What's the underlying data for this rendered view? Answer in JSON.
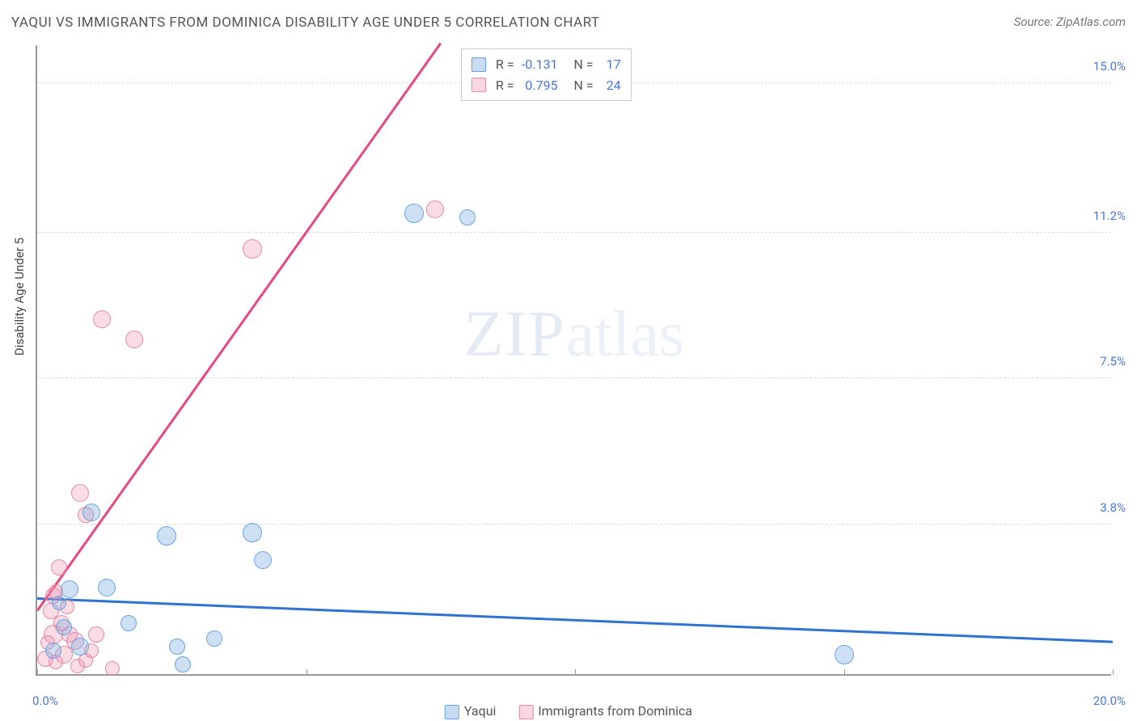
{
  "title": "YAQUI VS IMMIGRANTS FROM DOMINICA DISABILITY AGE UNDER 5 CORRELATION CHART",
  "source_label": "Source:",
  "source_name": "ZipAtlas.com",
  "y_axis_label": "Disability Age Under 5",
  "watermark_primary": "ZIP",
  "watermark_secondary": "atlas",
  "chart": {
    "type": "scatter",
    "background_color": "#ffffff",
    "grid_color": "#dddddd",
    "axis_color": "#999999",
    "xlim": [
      0,
      20
    ],
    "ylim": [
      0,
      16
    ],
    "x_ticks": [
      0,
      5,
      10,
      15,
      20
    ],
    "x_tick_labels": {
      "0": "0.0%",
      "20": "20.0%"
    },
    "y_ticks": [
      3.8,
      7.5,
      11.2,
      15.0
    ],
    "y_tick_labels": [
      "3.8%",
      "7.5%",
      "11.2%",
      "15.0%"
    ],
    "label_color": "#4a76d6",
    "label_fontsize": 15,
    "title_fontsize": 17,
    "series": [
      {
        "name": "Yaqui",
        "color_fill": "rgba(115,168,224,0.35)",
        "color_stroke": "#6aa3e0",
        "trend_color": "#2e72d2",
        "marker_radius": 11,
        "R": "-0.131",
        "N": "17",
        "trend": {
          "x1": 0,
          "y1": 1.9,
          "x2": 20,
          "y2": 0.8
        },
        "points": [
          {
            "x": 0.3,
            "y": 0.6,
            "r": 10
          },
          {
            "x": 0.5,
            "y": 1.2,
            "r": 10
          },
          {
            "x": 0.6,
            "y": 2.15,
            "r": 11
          },
          {
            "x": 0.8,
            "y": 0.7,
            "r": 11
          },
          {
            "x": 1.0,
            "y": 4.1,
            "r": 11
          },
          {
            "x": 1.3,
            "y": 2.2,
            "r": 11
          },
          {
            "x": 1.7,
            "y": 1.3,
            "r": 10
          },
          {
            "x": 2.4,
            "y": 3.5,
            "r": 12
          },
          {
            "x": 2.6,
            "y": 0.7,
            "r": 10
          },
          {
            "x": 2.7,
            "y": 0.25,
            "r": 10
          },
          {
            "x": 3.3,
            "y": 0.9,
            "r": 10
          },
          {
            "x": 4.0,
            "y": 3.6,
            "r": 12
          },
          {
            "x": 4.2,
            "y": 2.9,
            "r": 11
          },
          {
            "x": 7.0,
            "y": 11.7,
            "r": 12
          },
          {
            "x": 8.0,
            "y": 11.6,
            "r": 10
          },
          {
            "x": 15.0,
            "y": 0.5,
            "r": 12
          },
          {
            "x": 0.4,
            "y": 1.8,
            "r": 9
          }
        ]
      },
      {
        "name": "Immigrants from Dominica",
        "color_fill": "rgba(240,140,170,0.3)",
        "color_stroke": "#e688aa",
        "trend_color": "#e9487f",
        "marker_radius": 11,
        "R": "0.795",
        "N": "24",
        "trend": {
          "x1": 0,
          "y1": 1.6,
          "x2": 7.5,
          "y2": 16.0
        },
        "points": [
          {
            "x": 0.15,
            "y": 0.4,
            "r": 10
          },
          {
            "x": 0.2,
            "y": 0.8,
            "r": 9
          },
          {
            "x": 0.25,
            "y": 1.6,
            "r": 10
          },
          {
            "x": 0.3,
            "y": 2.0,
            "r": 10
          },
          {
            "x": 0.3,
            "y": 1.0,
            "r": 12
          },
          {
            "x": 0.35,
            "y": 2.1,
            "r": 9
          },
          {
            "x": 0.35,
            "y": 0.3,
            "r": 9
          },
          {
            "x": 0.4,
            "y": 2.7,
            "r": 10
          },
          {
            "x": 0.45,
            "y": 1.3,
            "r": 10
          },
          {
            "x": 0.5,
            "y": 0.5,
            "r": 11
          },
          {
            "x": 0.6,
            "y": 1.0,
            "r": 10
          },
          {
            "x": 0.7,
            "y": 0.85,
            "r": 11
          },
          {
            "x": 0.75,
            "y": 0.2,
            "r": 9
          },
          {
            "x": 0.8,
            "y": 4.6,
            "r": 11
          },
          {
            "x": 0.9,
            "y": 4.05,
            "r": 10
          },
          {
            "x": 1.0,
            "y": 0.6,
            "r": 9
          },
          {
            "x": 1.1,
            "y": 1.0,
            "r": 10
          },
          {
            "x": 1.2,
            "y": 9.0,
            "r": 11
          },
          {
            "x": 1.4,
            "y": 0.15,
            "r": 9
          },
          {
            "x": 1.8,
            "y": 8.5,
            "r": 11
          },
          {
            "x": 4.0,
            "y": 10.8,
            "r": 12
          },
          {
            "x": 7.4,
            "y": 11.8,
            "r": 11
          },
          {
            "x": 0.55,
            "y": 1.7,
            "r": 9
          },
          {
            "x": 0.9,
            "y": 0.35,
            "r": 9
          }
        ]
      }
    ]
  },
  "legend_bottom": [
    {
      "swatch": "blue",
      "label": "Yaqui"
    },
    {
      "swatch": "pink",
      "label": "Immigrants from Dominica"
    }
  ],
  "legend_box": {
    "r_label": "R =",
    "n_label": "N ="
  }
}
